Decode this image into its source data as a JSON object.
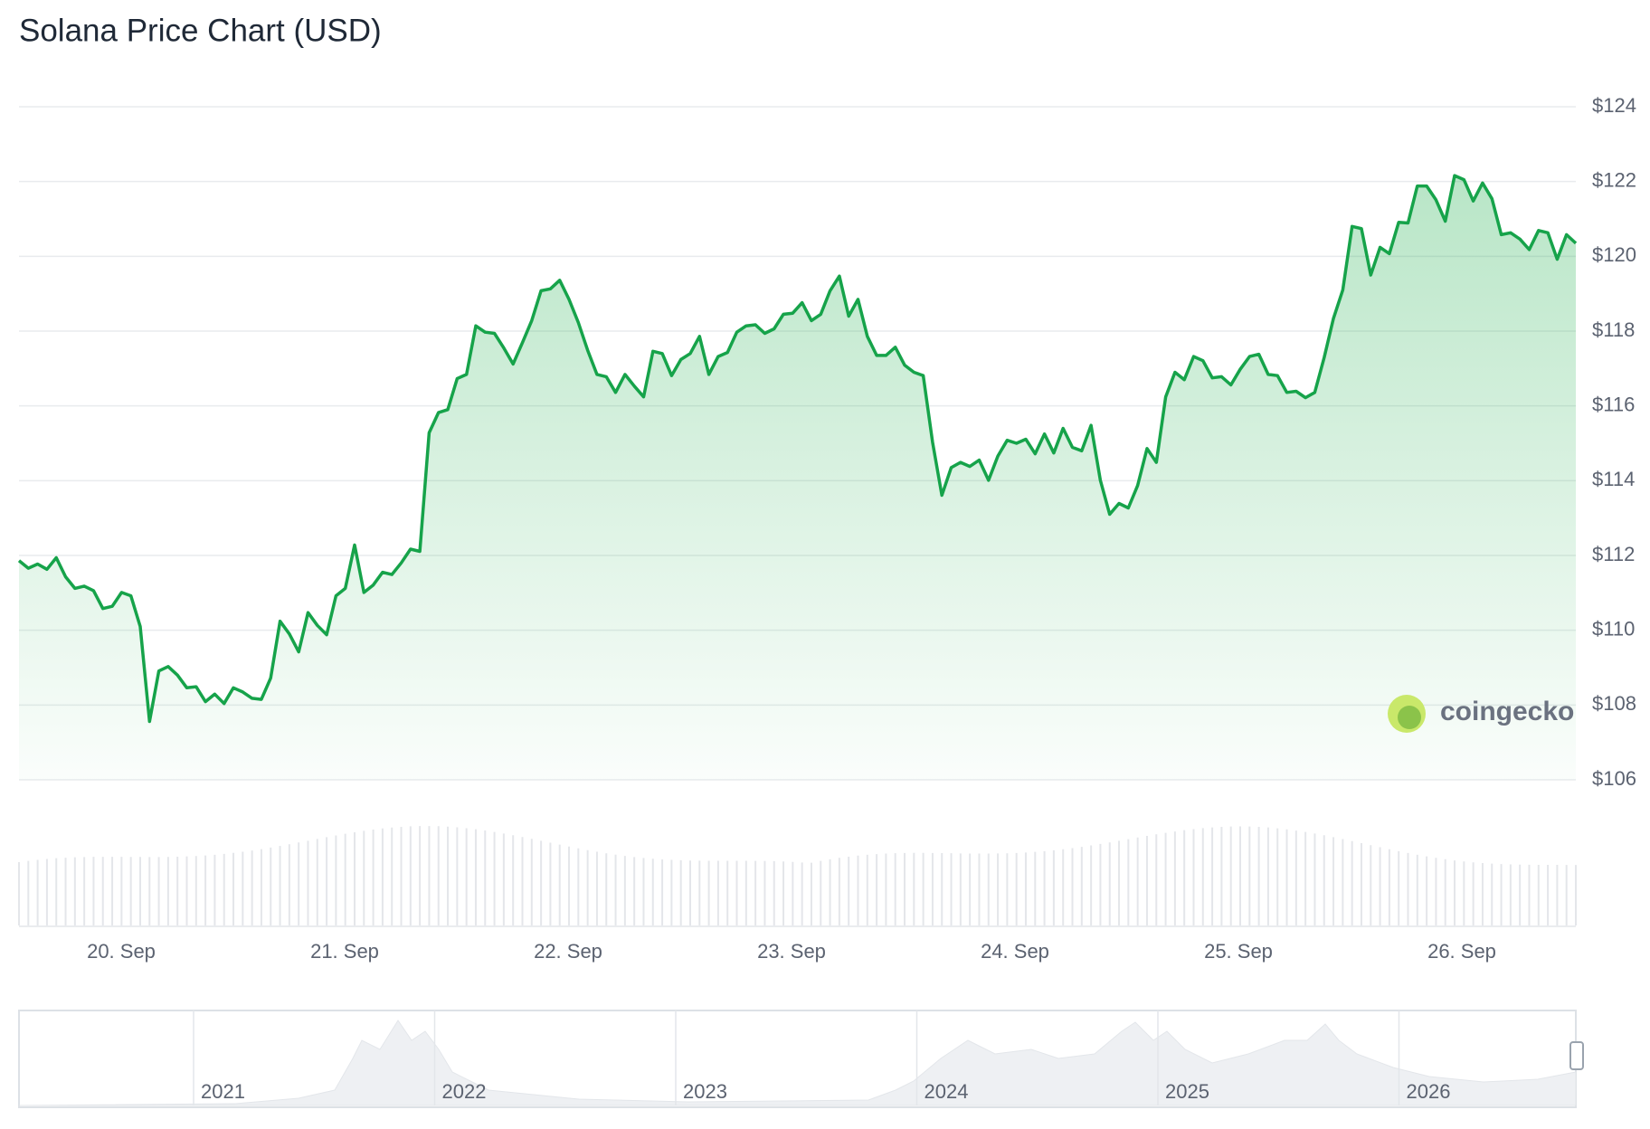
{
  "chart_data": {
    "type": "area",
    "title": "Solana Price Chart (USD)",
    "color": "#16a34a",
    "values": [
      111.86,
      111.66,
      111.77,
      111.63,
      111.94,
      111.43,
      111.12,
      111.18,
      111.06,
      110.58,
      110.64,
      111.01,
      110.92,
      110.1,
      107.56,
      108.91,
      109.03,
      108.8,
      108.46,
      108.49,
      108.09,
      108.29,
      108.04,
      108.46,
      108.35,
      108.18,
      108.15,
      108.72,
      110.24,
      109.9,
      109.42,
      110.47,
      110.13,
      109.88,
      110.92,
      111.12,
      112.28,
      111.01,
      111.21,
      111.55,
      111.49,
      111.8,
      112.17,
      112.11,
      115.28,
      115.82,
      115.9,
      116.73,
      116.84,
      118.14,
      117.97,
      117.94,
      117.55,
      117.12,
      117.69,
      118.28,
      119.08,
      119.13,
      119.36,
      118.85,
      118.23,
      117.49,
      116.84,
      116.78,
      116.36,
      116.84,
      116.53,
      116.24,
      117.46,
      117.4,
      116.81,
      117.24,
      117.4,
      117.86,
      116.84,
      117.32,
      117.43,
      117.97,
      118.14,
      118.17,
      117.94,
      118.06,
      118.45,
      118.48,
      118.76,
      118.28,
      118.45,
      119.08,
      119.47,
      118.4,
      118.85,
      117.86,
      117.35,
      117.35,
      117.57,
      117.09,
      116.9,
      116.81,
      115.03,
      113.61,
      114.35,
      114.49,
      114.38,
      114.55,
      114.01,
      114.66,
      115.08,
      115.0,
      115.11,
      114.72,
      115.25,
      114.74,
      115.4,
      114.89,
      114.8,
      115.48,
      114.01,
      113.1,
      113.39,
      113.27,
      113.87,
      114.86,
      114.49,
      116.24,
      116.9,
      116.7,
      117.32,
      117.21,
      116.75,
      116.78,
      116.56,
      116.98,
      117.32,
      117.38,
      116.84,
      116.81,
      116.36,
      116.39,
      116.22,
      116.36,
      117.29,
      118.34,
      119.1,
      120.8,
      120.74,
      119.5,
      120.24,
      120.07,
      120.91,
      120.89,
      121.88,
      121.88,
      121.51,
      120.94,
      122.16,
      122.05,
      121.48,
      121.96,
      121.54,
      120.58,
      120.63,
      120.46,
      120.18,
      120.69,
      120.63,
      119.92,
      120.58,
      120.35
    ],
    "ylim": [
      106,
      124
    ],
    "yticks": [
      {
        "value": 106,
        "label": "$106"
      },
      {
        "value": 108,
        "label": "$108"
      },
      {
        "value": 110,
        "label": "$110"
      },
      {
        "value": 112,
        "label": "$112"
      },
      {
        "value": 114,
        "label": "$114"
      },
      {
        "value": 116,
        "label": "$116"
      },
      {
        "value": 118,
        "label": "$118"
      },
      {
        "value": 120,
        "label": "$120"
      },
      {
        "value": 122,
        "label": "$122"
      },
      {
        "value": 124,
        "label": "$124"
      }
    ],
    "xticks": [
      "20. Sep",
      "21. Sep",
      "22. Sep",
      "23. Sep",
      "24. Sep",
      "25. Sep",
      "26. Sep"
    ],
    "grid": true,
    "watermark": "coingecko",
    "navigator_labels": [
      "2021",
      "2022",
      "2023",
      "2024",
      "2025",
      "2026"
    ]
  }
}
